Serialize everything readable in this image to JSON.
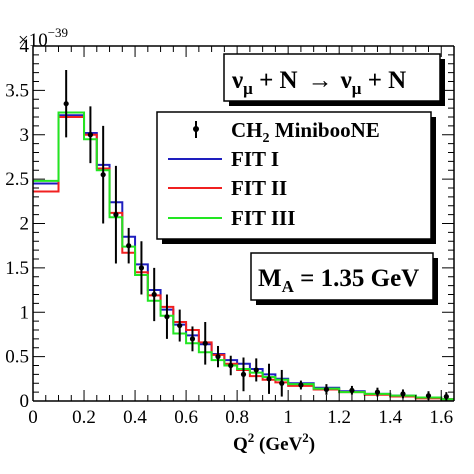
{
  "chart_data": {
    "type": "line",
    "title": "",
    "xlabel": "Q² (GeV²)",
    "xlabel_base": "Q",
    "xlabel_sup": "2",
    "xlabel_rest": " (GeV",
    "xlabel_sup2": "2",
    "xlabel_end": ")",
    "ylabel": "",
    "y_exponent_label": "×10",
    "y_exponent_power": "−39",
    "xlim": [
      0,
      1.65
    ],
    "ylim": [
      0,
      4
    ],
    "x_ticks": [
      "0",
      "0.2",
      "0.4",
      "0.6",
      "0.8",
      "1",
      "1.2",
      "1.4",
      "1.6"
    ],
    "x_tick_values": [
      0,
      0.2,
      0.4,
      0.6,
      0.8,
      1.0,
      1.2,
      1.4,
      1.6
    ],
    "y_ticks": [
      "0",
      "0.5",
      "1",
      "1.5",
      "2",
      "2.5",
      "3",
      "3.5",
      "4"
    ],
    "y_tick_values": [
      0,
      0.5,
      1,
      1.5,
      2,
      2.5,
      3,
      3.5,
      4
    ],
    "grid": false,
    "bin_edges": [
      0,
      0.1,
      0.2,
      0.25,
      0.3,
      0.35,
      0.4,
      0.45,
      0.5,
      0.55,
      0.6,
      0.65,
      0.7,
      0.75,
      0.8,
      0.85,
      0.9,
      0.95,
      1.0,
      1.1,
      1.2,
      1.3,
      1.4,
      1.5,
      1.6,
      1.65
    ],
    "data_series": {
      "name": "CH₂ MinibooNE",
      "x": [
        0.13,
        0.225,
        0.275,
        0.325,
        0.375,
        0.425,
        0.475,
        0.525,
        0.575,
        0.625,
        0.675,
        0.725,
        0.775,
        0.825,
        0.875,
        0.925,
        0.975,
        1.05,
        1.15,
        1.25,
        1.35,
        1.45,
        1.55,
        1.62
      ],
      "y": [
        3.35,
        3.0,
        2.55,
        2.1,
        1.75,
        1.5,
        1.2,
        0.95,
        0.85,
        0.7,
        0.65,
        0.5,
        0.4,
        0.3,
        0.35,
        0.25,
        0.2,
        0.18,
        0.13,
        0.12,
        0.1,
        0.08,
        0.06,
        0.05
      ],
      "yerr": [
        0.38,
        0.32,
        0.55,
        0.55,
        0.2,
        0.3,
        0.3,
        0.25,
        0.18,
        0.14,
        0.24,
        0.12,
        0.11,
        0.19,
        0.13,
        0.17,
        0.15,
        0.05,
        0.06,
        0.05,
        0.05,
        0.05,
        0.05,
        0.05
      ]
    },
    "series": [
      {
        "name": "FIT I",
        "color": "#1e1ebe",
        "values": [
          2.45,
          3.22,
          3.02,
          2.66,
          2.24,
          1.85,
          1.54,
          1.25,
          1.03,
          0.86,
          0.74,
          0.64,
          0.53,
          0.46,
          0.42,
          0.36,
          0.3,
          0.25,
          0.2,
          0.15,
          0.11,
          0.08,
          0.06,
          0.04,
          0.02
        ]
      },
      {
        "name": "FIT II",
        "color": "#f02020",
        "values": [
          2.36,
          3.2,
          3.0,
          2.62,
          2.12,
          1.67,
          1.45,
          1.19,
          1.06,
          0.89,
          0.8,
          0.66,
          0.52,
          0.42,
          0.35,
          0.28,
          0.24,
          0.21,
          0.17,
          0.13,
          0.1,
          0.07,
          0.05,
          0.03,
          0.02
        ]
      },
      {
        "name": "FIT III",
        "color": "#22e622",
        "values": [
          2.48,
          3.25,
          2.95,
          2.6,
          2.07,
          1.74,
          1.42,
          1.13,
          0.96,
          0.76,
          0.65,
          0.55,
          0.46,
          0.4,
          0.36,
          0.32,
          0.27,
          0.24,
          0.19,
          0.14,
          0.1,
          0.08,
          0.06,
          0.04,
          0.02
        ]
      }
    ],
    "legend": {
      "position": "top-right",
      "entries": [
        {
          "label": "CH₂ MinibooNE",
          "label_base": "CH",
          "label_sub": "2",
          "label_rest": " MinibooNE",
          "marker": "point-errorbar",
          "color": "#000000"
        },
        {
          "label": "FIT I",
          "marker": "line",
          "color": "#1e1ebe"
        },
        {
          "label": "FIT II",
          "marker": "line",
          "color": "#f02020"
        },
        {
          "label": "FIT III",
          "marker": "line",
          "color": "#22e622"
        }
      ]
    },
    "annotations": {
      "reaction": {
        "text": "νμ + N → νμ + N",
        "nu": "ν",
        "mu": "μ",
        "plus_n": " + N",
        "arrow": "→",
        "nu2": "ν",
        "mu2": "μ",
        "plus_n2": " + N"
      },
      "mass": {
        "text": "M_A = 1.35 GeV",
        "m": "M",
        "sub": "A",
        "rest": " = 1.35 GeV"
      }
    }
  }
}
